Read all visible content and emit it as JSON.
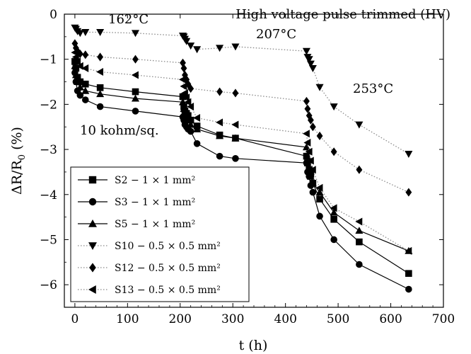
{
  "chart_data": {
    "type": "line",
    "title": "",
    "xlabel": "t (h)",
    "ylabel": "ΔR/R",
    "ylabel_sub": "0",
    "ylabel_unit": " (%)",
    "xlim": [
      -20,
      700
    ],
    "ylim": [
      -6.5,
      0
    ],
    "xticks": [
      "0",
      "100",
      "200",
      "300",
      "400",
      "500",
      "600",
      "700"
    ],
    "yticks": [
      "0",
      "−1",
      "−2",
      "−3",
      "−4",
      "−5",
      "−6"
    ],
    "grid": false,
    "legend_position": "lower-left",
    "annotations": {
      "header": "High voltage pulse trimmed (HV)",
      "temp1": "162°C",
      "temp2": "207°C",
      "temp3": "253°C",
      "resistivity": "10 kohm/sq."
    },
    "series": [
      {
        "name": "S2 − 1 × 1 mm²",
        "marker": "square",
        "line": "solid",
        "x": [
          0,
          2,
          5,
          10,
          20,
          48,
          115,
          205,
          207,
          209,
          212,
          215,
          220,
          232,
          275,
          305,
          440,
          442,
          445,
          448,
          452,
          465,
          492,
          540,
          634
        ],
        "y": [
          -1.05,
          -1.2,
          -1.4,
          -1.5,
          -1.55,
          -1.63,
          -1.72,
          -1.83,
          -2.05,
          -2.15,
          -2.2,
          -2.25,
          -2.35,
          -2.48,
          -2.68,
          -2.75,
          -3.15,
          -3.3,
          -3.45,
          -3.55,
          -3.75,
          -4.1,
          -4.55,
          -5.05,
          -5.75
        ]
      },
      {
        "name": "S3 − 1 × 1 mm²",
        "marker": "circle",
        "line": "solid",
        "x": [
          0,
          2,
          5,
          10,
          20,
          48,
          115,
          205,
          207,
          209,
          212,
          215,
          220,
          232,
          275,
          305,
          440,
          442,
          445,
          448,
          452,
          465,
          492,
          540,
          634
        ],
        "y": [
          -1.3,
          -1.5,
          -1.7,
          -1.8,
          -1.9,
          -2.05,
          -2.15,
          -2.28,
          -2.35,
          -2.45,
          -2.5,
          -2.55,
          -2.6,
          -2.87,
          -3.15,
          -3.2,
          -3.3,
          -3.5,
          -3.6,
          -3.8,
          -3.95,
          -4.48,
          -5.0,
          -5.55,
          -6.1
        ]
      },
      {
        "name": "S5 − 1 × 1 mm²",
        "marker": "triangle-up",
        "line": "solid",
        "x": [
          0,
          2,
          5,
          10,
          20,
          48,
          115,
          205,
          207,
          209,
          212,
          215,
          220,
          232,
          275,
          305,
          440,
          442,
          445,
          448,
          452,
          465,
          492,
          540,
          634
        ],
        "y": [
          -1.15,
          -1.35,
          -1.5,
          -1.62,
          -1.7,
          -1.77,
          -1.87,
          -1.95,
          -2.1,
          -2.25,
          -2.3,
          -2.35,
          -2.45,
          -2.55,
          -2.7,
          -2.75,
          -2.95,
          -3.15,
          -3.4,
          -3.6,
          -3.75,
          -3.95,
          -4.4,
          -4.8,
          -5.25
        ]
      },
      {
        "name": "S10 − 0.5 × 0.5 mm²",
        "marker": "triangle-down",
        "line": "dotted",
        "x": [
          0,
          2,
          5,
          10,
          20,
          48,
          115,
          205,
          207,
          209,
          212,
          220,
          232,
          275,
          305,
          440,
          442,
          445,
          448,
          452,
          465,
          492,
          540,
          634
        ],
        "y": [
          -0.3,
          -0.33,
          -0.38,
          -0.42,
          -0.4,
          -0.4,
          -0.42,
          -0.48,
          -0.5,
          -0.55,
          -0.6,
          -0.7,
          -0.78,
          -0.75,
          -0.72,
          -0.82,
          -0.95,
          -1.0,
          -1.1,
          -1.2,
          -1.62,
          -2.05,
          -2.45,
          -3.1
        ]
      },
      {
        "name": "S12 − 0.5 × 0.5 mm²",
        "marker": "diamond",
        "line": "dotted",
        "x": [
          0,
          2,
          5,
          10,
          20,
          48,
          115,
          205,
          207,
          209,
          212,
          215,
          220,
          275,
          305,
          440,
          442,
          445,
          448,
          452,
          465,
          492,
          540,
          634
        ],
        "y": [
          -0.65,
          -0.75,
          -0.82,
          -0.88,
          -0.9,
          -0.95,
          -1.0,
          -1.08,
          -1.2,
          -1.35,
          -1.45,
          -1.55,
          -1.65,
          -1.72,
          -1.75,
          -1.93,
          -2.1,
          -2.25,
          -2.35,
          -2.5,
          -2.7,
          -3.05,
          -3.45,
          -3.95
        ]
      },
      {
        "name": "S13 − 0.5 × 0.5 mm²",
        "marker": "triangle-left",
        "line": "dotted",
        "x": [
          0,
          2,
          5,
          10,
          20,
          48,
          115,
          205,
          207,
          209,
          212,
          215,
          220,
          232,
          275,
          305,
          440,
          442,
          445,
          448,
          452,
          465,
          492,
          540,
          634
        ],
        "y": [
          -0.85,
          -0.95,
          -1.05,
          -1.15,
          -1.2,
          -1.28,
          -1.35,
          -1.45,
          -1.6,
          -1.75,
          -1.85,
          -1.95,
          -2.05,
          -2.3,
          -2.4,
          -2.45,
          -2.65,
          -2.85,
          -3.05,
          -3.25,
          -3.45,
          -3.85,
          -4.3,
          -4.6,
          -5.25
        ]
      }
    ]
  }
}
